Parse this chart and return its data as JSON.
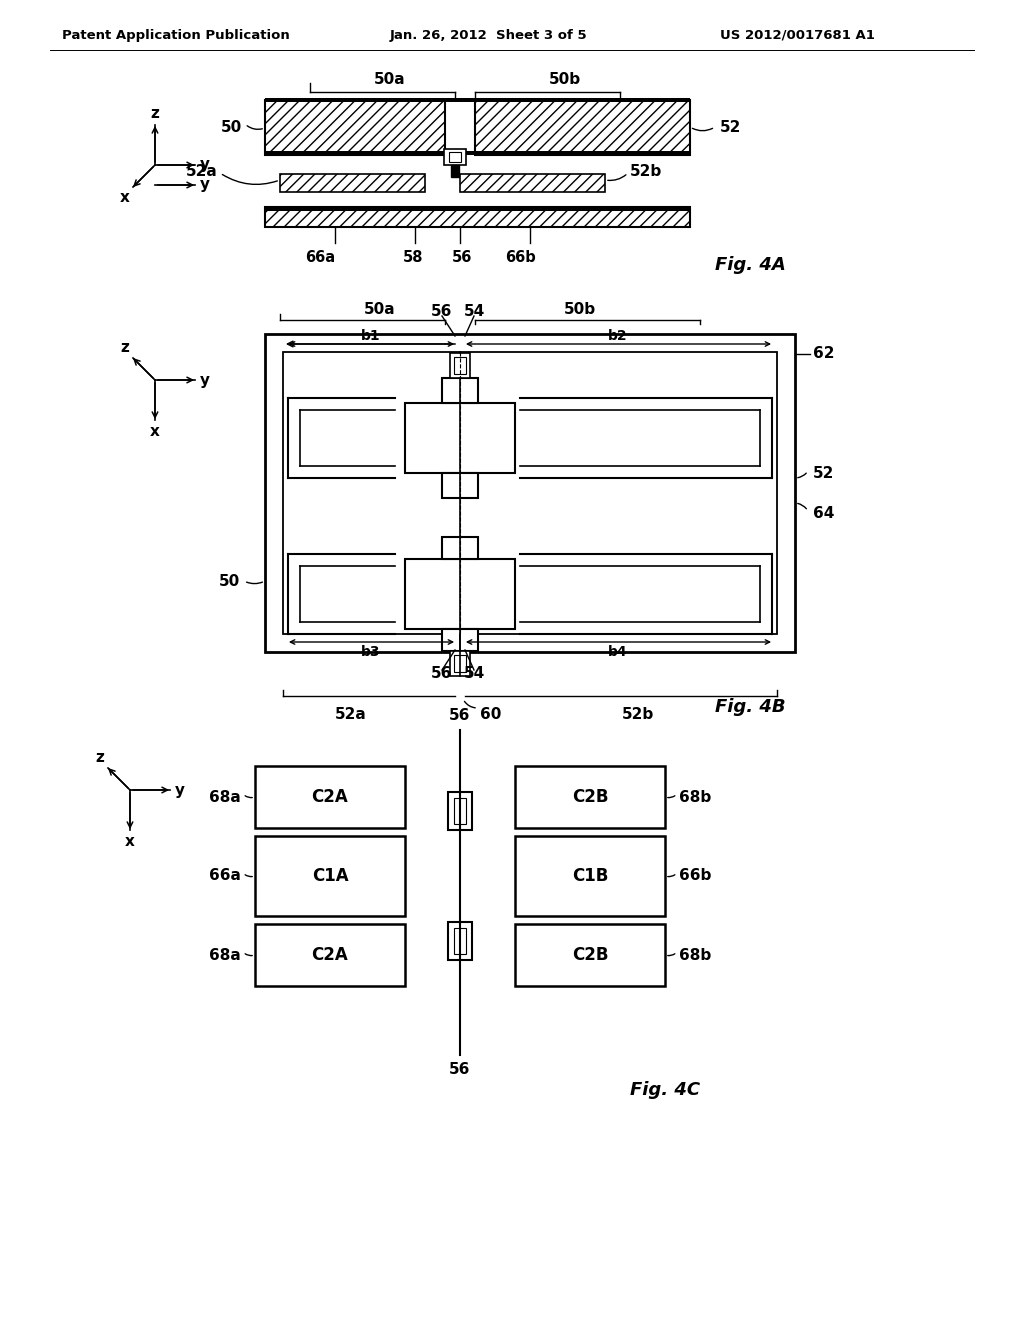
{
  "bg_color": "#ffffff",
  "header_left": "Patent Application Publication",
  "header_mid": "Jan. 26, 2012  Sheet 3 of 5",
  "header_right": "US 2012/0017681 A1"
}
